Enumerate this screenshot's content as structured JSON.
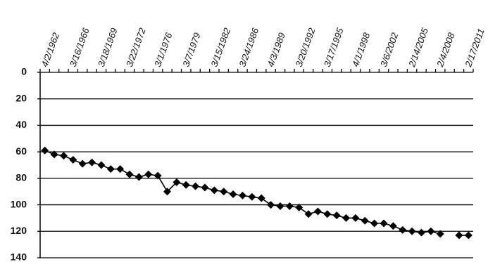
{
  "chart_data": {
    "type": "line",
    "categories": [
      "4/2/1962",
      null,
      null,
      "3/16/1966",
      null,
      null,
      "3/18/1969",
      null,
      null,
      "3/22/1972",
      null,
      null,
      "3/1/1976",
      null,
      null,
      "3/7/1979",
      null,
      null,
      "3/15/1982",
      null,
      null,
      "3/24/1986",
      null,
      null,
      "4/3/1989",
      null,
      null,
      "3/20/1992",
      null,
      null,
      "3/17/1995",
      null,
      null,
      "4/1/1998",
      null,
      null,
      "3/6/2002",
      null,
      null,
      "2/14/2005",
      null,
      null,
      "2/4/2008",
      null,
      null,
      "2/17/2011"
    ],
    "values": [
      59,
      62,
      63,
      66,
      69,
      68,
      70,
      73,
      73,
      77,
      79,
      77,
      78,
      90,
      83,
      85,
      86,
      87,
      89,
      90,
      92,
      93,
      94,
      95,
      100,
      101,
      101,
      102,
      107,
      105,
      107,
      108,
      110,
      110,
      112,
      114,
      114,
      116,
      119,
      120,
      121,
      120,
      122,
      null,
      123,
      123
    ],
    "color": "#000000",
    "ylim": [
      0,
      140
    ],
    "yticks": [
      0,
      20,
      40,
      60,
      80,
      100,
      120,
      140
    ],
    "y_inverted": true,
    "grid": true
  }
}
